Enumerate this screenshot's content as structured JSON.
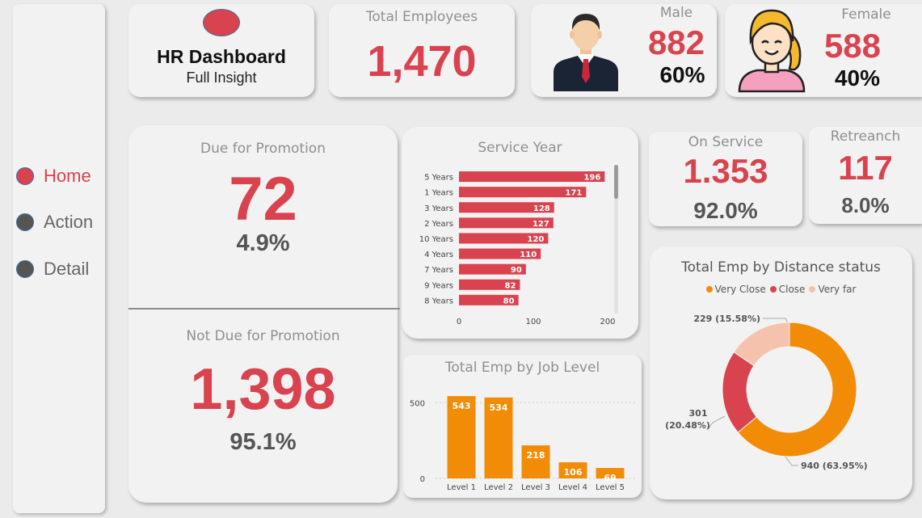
{
  "brand": {
    "title": "HR Dashboard",
    "subtitle": "Full Insight"
  },
  "nav": [
    {
      "label": "Home",
      "dot_color": "#d9434f",
      "text_color": "#d9434f"
    },
    {
      "label": "Action",
      "dot_color": "#555555",
      "text_color": "#666666"
    },
    {
      "label": "Detail",
      "dot_color": "#555555",
      "text_color": "#666666"
    }
  ],
  "kpis": {
    "total_employees": {
      "label": "Total Employees",
      "value": "1,470"
    },
    "male": {
      "label": "Male",
      "value": "882",
      "pct": "60%"
    },
    "female": {
      "label": "Female",
      "value": "588",
      "pct": "40%"
    },
    "due_promotion": {
      "label": "Due for Promotion",
      "value": "72",
      "pct": "4.9%"
    },
    "not_due_promotion": {
      "label": "Not Due for Promotion",
      "value": "1,398",
      "pct": "95.1%"
    },
    "on_service": {
      "label": "On Service",
      "value": "1.353",
      "pct": "92.0%"
    },
    "retreanch": {
      "label": "Retreanch",
      "value": "117",
      "pct": "8.0%"
    }
  },
  "colors": {
    "accent": "#d9434f",
    "orange": "#f28c06",
    "peach": "#f5c3ad",
    "muted": "#8f8f8f"
  },
  "chart_data": [
    {
      "type": "bar",
      "orientation": "horizontal",
      "title": "Service Year",
      "categories": [
        "5 Years",
        "1 Years",
        "3 Years",
        "2 Years",
        "10 Years",
        "4 Years",
        "7 Years",
        "9 Years",
        "8 Years"
      ],
      "values": [
        196,
        171,
        128,
        127,
        120,
        110,
        90,
        82,
        80
      ],
      "xlim": [
        0,
        200
      ],
      "xticks": [
        0,
        100,
        200
      ],
      "color": "#d9434f"
    },
    {
      "type": "bar",
      "title": "Total Emp by Job Level",
      "categories": [
        "Level 1",
        "Level 2",
        "Level 3",
        "Level 4",
        "Level 5"
      ],
      "values": [
        543,
        534,
        218,
        106,
        69
      ],
      "ylim": [
        0,
        560
      ],
      "yticks": [
        0,
        500
      ],
      "color": "#f28c06"
    },
    {
      "type": "pie",
      "donut": true,
      "title": "Total Emp by Distance status",
      "legend_position": "top",
      "slices": [
        {
          "name": "Very Close",
          "value": 940,
          "label": "940 (63.95%)",
          "color": "#f28c06"
        },
        {
          "name": "Close",
          "value": 301,
          "label_line1": "301",
          "label_line2": "(20.48%)",
          "color": "#d9434f"
        },
        {
          "name": "Very far",
          "value": 229,
          "label": "229 (15.58%)",
          "color": "#f5c3ad"
        }
      ]
    }
  ]
}
